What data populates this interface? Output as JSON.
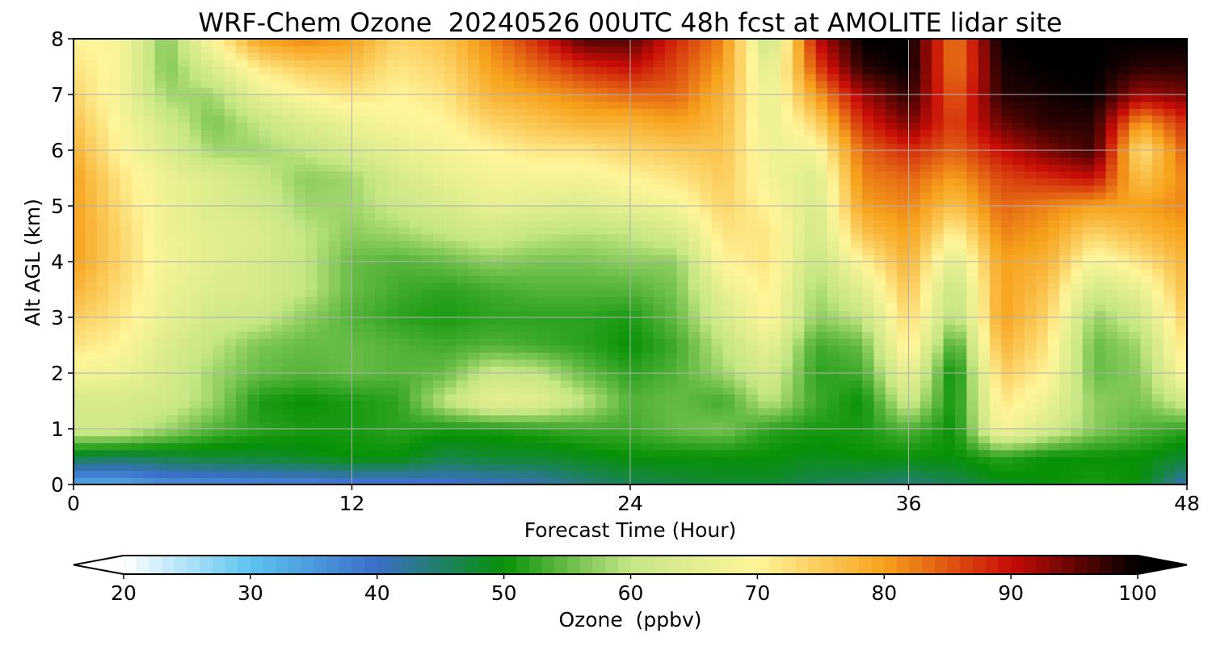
{
  "chart_data": {
    "type": "heatmap",
    "title": "WRF-Chem Ozone  20240526 00UTC 48h fcst at AMOLITE lidar site",
    "xlabel": "Forecast Time (Hour)",
    "ylabel": "Alt AGL (km)",
    "xlim": [
      0,
      48
    ],
    "ylim": [
      0,
      8
    ],
    "xticks": [
      0,
      12,
      24,
      36,
      48
    ],
    "yticks": [
      0,
      1,
      2,
      3,
      4,
      5,
      6,
      7,
      8
    ],
    "grid": true,
    "colorbar": {
      "label": "Ozone  (ppbv)",
      "range": [
        20,
        100
      ],
      "ticks": [
        20,
        30,
        40,
        50,
        60,
        70,
        80,
        90,
        100
      ],
      "extend": "both",
      "colors": [
        "#ffffff",
        "#5dc4f0",
        "#3a6fc8",
        "#079107",
        "#c5e684",
        "#fff59a",
        "#f7a21c",
        "#c80c07",
        "#000000"
      ]
    },
    "x_hours": [
      0,
      2,
      4,
      6,
      8,
      10,
      12,
      14,
      16,
      18,
      20,
      22,
      24,
      26,
      28,
      30,
      32,
      34,
      36,
      38,
      40,
      42,
      44,
      46,
      48
    ],
    "y_km": [
      0,
      0.5,
      1,
      1.5,
      2,
      2.5,
      3,
      3.5,
      4,
      4.5,
      5,
      5.5,
      6,
      6.5,
      7,
      7.5,
      8
    ],
    "ozone_ppbv": [
      [
        33,
        33,
        36,
        36,
        37,
        37,
        38,
        38,
        39,
        40,
        41,
        44,
        46,
        47,
        48,
        48,
        46,
        45,
        44,
        46,
        49,
        50,
        51,
        50,
        40
      ],
      [
        47,
        46,
        47,
        48,
        48,
        49,
        50,
        50,
        47,
        48,
        48,
        49,
        50,
        50,
        50,
        50,
        49,
        50,
        50,
        50,
        52,
        50,
        50,
        50,
        48
      ],
      [
        62,
        62,
        58,
        54,
        52,
        51,
        51,
        52,
        51,
        51,
        52,
        53,
        53,
        55,
        56,
        52,
        51,
        51,
        54,
        50,
        69,
        63,
        57,
        54,
        52
      ],
      [
        63,
        63,
        62,
        58,
        51,
        50,
        51,
        52,
        60,
        66,
        65,
        60,
        54,
        55,
        53,
        60,
        53,
        50,
        62,
        50,
        72,
        67,
        57,
        56,
        62
      ],
      [
        68,
        67,
        63,
        58,
        55,
        54,
        55,
        54,
        55,
        61,
        60,
        55,
        52,
        54,
        58,
        63,
        52,
        53,
        67,
        49,
        75,
        70,
        55,
        57,
        70
      ],
      [
        72,
        70,
        64,
        60,
        56,
        55,
        55,
        54,
        53,
        54,
        53,
        52,
        50,
        53,
        60,
        66,
        53,
        55,
        72,
        52,
        78,
        72,
        55,
        58,
        73
      ],
      [
        75,
        72,
        66,
        62,
        61,
        57,
        54,
        52,
        51,
        52,
        52,
        52,
        51,
        55,
        63,
        70,
        57,
        60,
        74,
        58,
        80,
        74,
        57,
        62,
        75
      ],
      [
        78,
        73,
        67,
        64,
        63,
        60,
        55,
        53,
        52,
        53,
        54,
        54,
        54,
        56,
        66,
        71,
        58,
        65,
        76,
        60,
        80,
        76,
        62,
        66,
        77
      ],
      [
        80,
        74,
        68,
        65,
        63,
        60,
        55,
        54,
        55,
        57,
        56,
        56,
        57,
        57,
        70,
        72,
        60,
        70,
        78,
        64,
        80,
        78,
        68,
        72,
        78
      ],
      [
        80,
        74,
        67,
        65,
        64,
        60,
        57,
        58,
        60,
        62,
        60,
        59,
        60,
        63,
        72,
        72,
        62,
        76,
        80,
        70,
        82,
        80,
        74,
        77,
        80
      ],
      [
        80,
        73,
        67,
        64,
        62,
        58,
        58,
        61,
        63,
        66,
        65,
        64,
        66,
        68,
        74,
        70,
        63,
        80,
        82,
        76,
        84,
        82,
        80,
        80,
        82
      ],
      [
        80,
        72,
        67,
        64,
        61,
        57,
        58,
        63,
        66,
        68,
        68,
        68,
        70,
        72,
        75,
        68,
        64,
        82,
        84,
        80,
        86,
        88,
        90,
        76,
        82
      ],
      [
        78,
        70,
        64,
        58,
        58,
        60,
        63,
        66,
        68,
        70,
        72,
        72,
        74,
        75,
        76,
        67,
        68,
        84,
        88,
        84,
        90,
        94,
        97,
        72,
        85
      ],
      [
        76,
        69,
        62,
        56,
        60,
        64,
        67,
        69,
        70,
        74,
        76,
        78,
        78,
        80,
        77,
        66,
        74,
        88,
        94,
        86,
        95,
        98,
        98,
        80,
        88
      ],
      [
        74,
        68,
        58,
        58,
        66,
        70,
        72,
        70,
        72,
        78,
        80,
        82,
        84,
        84,
        78,
        66,
        80,
        92,
        98,
        84,
        98,
        99,
        100,
        92,
        94
      ],
      [
        72,
        69,
        56,
        64,
        72,
        75,
        76,
        72,
        74,
        80,
        84,
        88,
        90,
        86,
        80,
        64,
        86,
        98,
        100,
        82,
        99,
        100,
        100,
        98,
        98
      ],
      [
        70,
        69,
        56,
        70,
        80,
        82,
        80,
        74,
        76,
        82,
        88,
        96,
        96,
        88,
        82,
        60,
        90,
        100,
        100,
        82,
        100,
        100,
        100,
        100,
        100
      ]
    ]
  }
}
